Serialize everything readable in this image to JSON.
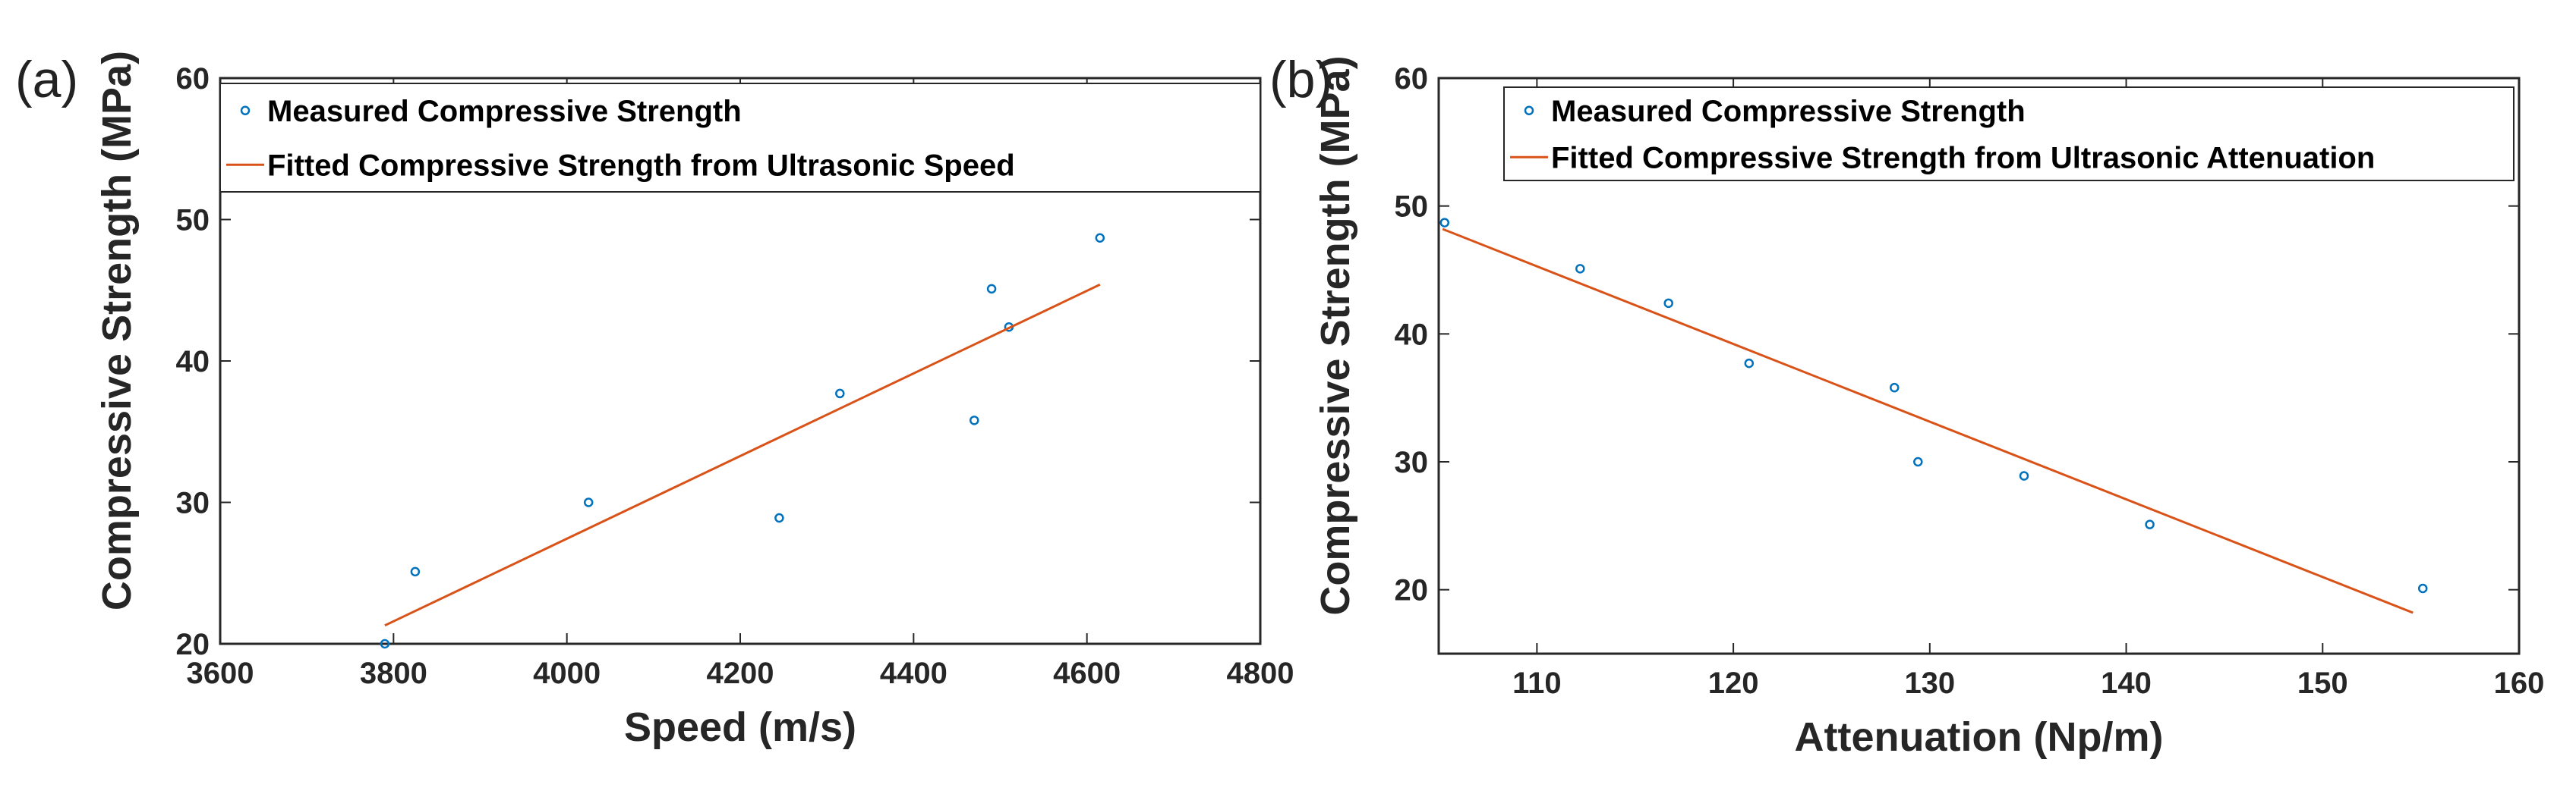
{
  "chart_data": [
    {
      "type": "scatter",
      "panel_label": "(a)",
      "xlabel": "Speed (m/s)",
      "ylabel": "Compressive Strength (MPa)",
      "xlim": [
        3600,
        4800
      ],
      "ylim": [
        20,
        60
      ],
      "xticks": [
        3600,
        3800,
        4000,
        4200,
        4400,
        4600,
        4800
      ],
      "yticks": [
        20,
        30,
        40,
        50,
        60
      ],
      "legend_position": "top",
      "series": [
        {
          "name": "Measured Compressive Strength",
          "kind": "scatter",
          "color": "#0072BD",
          "x": [
            3790,
            3825,
            4025,
            4245,
            4315,
            4470,
            4490,
            4510,
            4615
          ],
          "y": [
            20.0,
            25.1,
            30.0,
            28.9,
            37.7,
            35.8,
            45.1,
            42.4,
            48.7
          ]
        },
        {
          "name": "Fitted Compressive Strength from Ultrasonic Speed",
          "kind": "line",
          "color": "#D95319",
          "x": [
            3790,
            4615
          ],
          "y": [
            21.3,
            45.4
          ]
        }
      ]
    },
    {
      "type": "scatter",
      "panel_label": "(b)",
      "xlabel": "Attenuation (Np/m)",
      "ylabel": "Compressive Strength (MPa)",
      "xlim": [
        105,
        160
      ],
      "ylim": [
        15,
        60
      ],
      "xticks": [
        110,
        120,
        130,
        140,
        150,
        160
      ],
      "yticks": [
        20,
        30,
        40,
        50,
        60
      ],
      "legend_position": "top",
      "series": [
        {
          "name": "Measured Compressive Strength",
          "kind": "scatter",
          "color": "#0072BD",
          "x": [
            105.3,
            112.2,
            116.7,
            120.8,
            128.2,
            129.4,
            134.8,
            141.2,
            155.1
          ],
          "y": [
            48.7,
            45.1,
            42.4,
            37.7,
            35.8,
            30.0,
            28.9,
            25.1,
            20.1
          ]
        },
        {
          "name": "Fitted Compressive Strength from Ultrasonic Attenuation",
          "kind": "line",
          "color": "#D95319",
          "x": [
            105.2,
            154.6
          ],
          "y": [
            48.2,
            18.2
          ]
        }
      ]
    }
  ]
}
